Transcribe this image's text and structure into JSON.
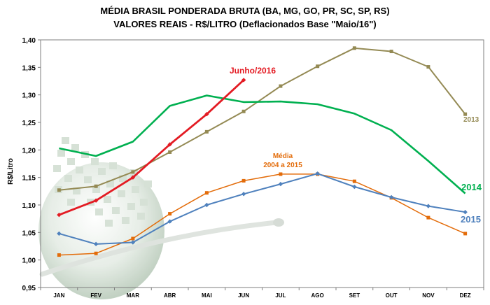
{
  "title_line1": "MÉDIA BRASIL PONDERADA BRUTA (BA, MG, GO, PR, SC, SP, RS)",
  "title_line2": "VALORES REAIS - R$/LITRO (Deflacionados Base \"Maio/16\")",
  "chart_data": {
    "type": "line",
    "ylabel": "R$/Litro",
    "xlabel": "",
    "ylim": [
      0.95,
      1.4
    ],
    "yticks": [
      "0,95",
      "1,00",
      "1,05",
      "1,10",
      "1,15",
      "1,20",
      "1,25",
      "1,30",
      "1,35",
      "1,40"
    ],
    "categories": [
      "JAN",
      "FEV",
      "MAR",
      "ABR",
      "MAI",
      "JUN",
      "JUL",
      "AGO",
      "SET",
      "OUT",
      "NOV",
      "DEZ"
    ],
    "series": [
      {
        "name": "2013",
        "color": "#948A54",
        "marker": "square",
        "values": [
          1.127,
          1.134,
          1.16,
          1.196,
          1.233,
          1.27,
          1.316,
          1.352,
          1.385,
          1.379,
          1.351,
          1.265
        ]
      },
      {
        "name": "2014",
        "color": "#00B050",
        "marker": "none",
        "values": [
          1.203,
          1.189,
          1.215,
          1.28,
          1.299,
          1.287,
          1.288,
          1.283,
          1.266,
          1.236,
          1.18,
          1.121
        ]
      },
      {
        "name": "Média 2004 a 2015",
        "color": "#E36C0A",
        "marker": "square",
        "values": [
          1.009,
          1.012,
          1.039,
          1.084,
          1.122,
          1.144,
          1.156,
          1.156,
          1.143,
          1.113,
          1.077,
          1.048
        ]
      },
      {
        "name": "2015",
        "color": "#4F81BD",
        "marker": "diamond",
        "values": [
          1.048,
          1.029,
          1.032,
          1.07,
          1.1,
          1.12,
          1.138,
          1.157,
          1.133,
          1.114,
          1.098,
          1.087
        ]
      },
      {
        "name": "Junho/2016",
        "color": "#E31B23",
        "marker": "diamond",
        "values": [
          1.082,
          1.108,
          1.15,
          1.21,
          1.265,
          1.327,
          null,
          null,
          null,
          null,
          null,
          null
        ]
      }
    ],
    "labels": [
      {
        "text": "Junho/2016",
        "color": "#E31B23"
      },
      {
        "text": "2013",
        "color": "#948A54"
      },
      {
        "text": "2014",
        "color": "#00B050"
      },
      {
        "text": "2015",
        "color": "#4F81BD"
      },
      {
        "text": "Média",
        "color": "#E36C0A"
      },
      {
        "text": "2004 a 2015",
        "color": "#E36C0A"
      }
    ]
  }
}
